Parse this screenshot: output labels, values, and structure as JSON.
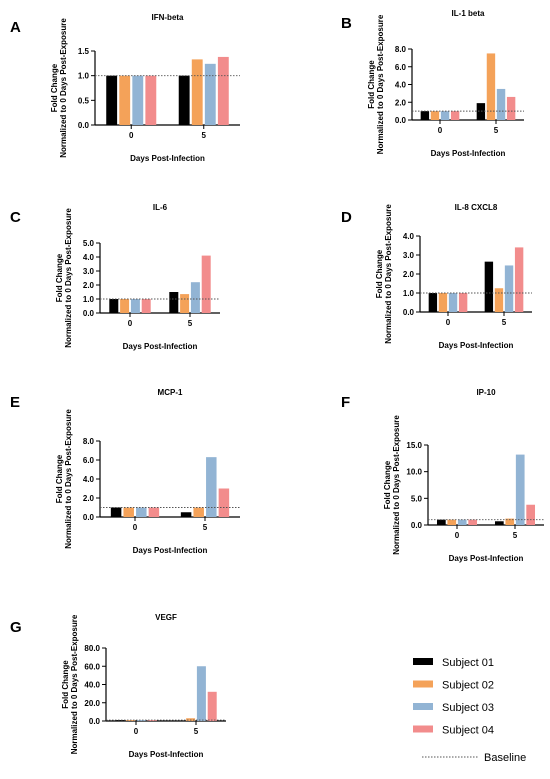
{
  "figure": {
    "colors": {
      "s1": "#000000",
      "s2": "#F4A259",
      "s3": "#92B4D4",
      "s4": "#F28C8C",
      "baseline": "#555555"
    },
    "legend": [
      {
        "label": "Subject 01",
        "color_key": "s1"
      },
      {
        "label": "Subject 02",
        "color_key": "s2"
      },
      {
        "label": "Subject 03",
        "color_key": "s3"
      },
      {
        "label": "Subject 04",
        "color_key": "s4"
      }
    ],
    "baseline_label": "Baseline"
  },
  "chart_data": [
    {
      "panel": "A",
      "title": "IFN-beta",
      "type": "bar",
      "ylabel_1": "Fold Change",
      "ylabel_2": "Normalized to 0 Days Post-Exposure",
      "xlabel": "Days Post-Infection",
      "categories": [
        "0",
        "5"
      ],
      "ylim": [
        0,
        1.5
      ],
      "yticks": [
        "0.0",
        "0.5",
        "1.0",
        "1.5"
      ],
      "baseline": 1.0,
      "series": [
        {
          "name": "Subject 01",
          "values": [
            1.0,
            1.0
          ]
        },
        {
          "name": "Subject 02",
          "values": [
            1.0,
            1.33
          ]
        },
        {
          "name": "Subject 03",
          "values": [
            1.0,
            1.24
          ]
        },
        {
          "name": "Subject 04",
          "values": [
            1.0,
            1.38
          ]
        }
      ]
    },
    {
      "panel": "B",
      "title": "IL-1 beta",
      "type": "bar",
      "ylabel_1": "Fold Change",
      "ylabel_2": "Normalized to 0 Days Post-Exposure",
      "xlabel": "Days Post-Infection",
      "categories": [
        "0",
        "5"
      ],
      "ylim": [
        0,
        8.0
      ],
      "yticks": [
        "0.0",
        "2.0",
        "4.0",
        "6.0",
        "8.0"
      ],
      "baseline": 1.0,
      "series": [
        {
          "name": "Subject 01",
          "values": [
            1.0,
            1.9
          ]
        },
        {
          "name": "Subject 02",
          "values": [
            1.0,
            7.5
          ]
        },
        {
          "name": "Subject 03",
          "values": [
            1.0,
            3.5
          ]
        },
        {
          "name": "Subject 04",
          "values": [
            1.0,
            2.6
          ]
        }
      ]
    },
    {
      "panel": "C",
      "title": "IL-6",
      "type": "bar",
      "ylabel_1": "Fold Change",
      "ylabel_2": "Normalized to 0 Days Post-Exposure",
      "xlabel": "Days Post-Infection",
      "categories": [
        "0",
        "5"
      ],
      "ylim": [
        0,
        5.0
      ],
      "yticks": [
        "0.0",
        "1.0",
        "2.0",
        "3.0",
        "4.0",
        "5.0"
      ],
      "baseline": 1.0,
      "series": [
        {
          "name": "Subject 01",
          "values": [
            1.0,
            1.5
          ]
        },
        {
          "name": "Subject 02",
          "values": [
            1.0,
            1.35
          ]
        },
        {
          "name": "Subject 03",
          "values": [
            1.0,
            2.2
          ]
        },
        {
          "name": "Subject 04",
          "values": [
            1.0,
            4.1
          ]
        }
      ]
    },
    {
      "panel": "D",
      "title": "IL-8 CXCL8",
      "type": "bar",
      "ylabel_1": "Fold Change",
      "ylabel_2": "Normalized to 0 Days Post-Exposure",
      "xlabel": "Days Post-Infection",
      "categories": [
        "0",
        "5"
      ],
      "ylim": [
        0,
        4.0
      ],
      "yticks": [
        "0.0",
        "1.0",
        "2.0",
        "3.0",
        "4.0"
      ],
      "baseline": 1.0,
      "series": [
        {
          "name": "Subject 01",
          "values": [
            1.0,
            2.65
          ]
        },
        {
          "name": "Subject 02",
          "values": [
            1.0,
            1.25
          ]
        },
        {
          "name": "Subject 03",
          "values": [
            1.0,
            2.45
          ]
        },
        {
          "name": "Subject 04",
          "values": [
            1.0,
            3.4
          ]
        }
      ]
    },
    {
      "panel": "E",
      "title": "MCP-1",
      "type": "bar",
      "ylabel_1": "Fold Change",
      "ylabel_2": "Normalized to 0 Days Post-Exposure",
      "xlabel": "Days Post-Infection",
      "categories": [
        "0",
        "5"
      ],
      "ylim": [
        0,
        8.0
      ],
      "yticks": [
        "0.0",
        "2.0",
        "4.0",
        "6.0",
        "8.0"
      ],
      "baseline": 1.0,
      "series": [
        {
          "name": "Subject 01",
          "values": [
            1.0,
            0.5
          ]
        },
        {
          "name": "Subject 02",
          "values": [
            1.0,
            1.0
          ]
        },
        {
          "name": "Subject 03",
          "values": [
            1.0,
            6.3
          ]
        },
        {
          "name": "Subject 04",
          "values": [
            1.0,
            3.0
          ]
        }
      ]
    },
    {
      "panel": "F",
      "title": "IP-10",
      "type": "bar",
      "ylabel_1": "Fold Change",
      "ylabel_2": "Normalized to 0 Days Post-Exposure",
      "xlabel": "Days Post-Infection",
      "categories": [
        "0",
        "5"
      ],
      "ylim": [
        0,
        15.0
      ],
      "yticks": [
        "0.0",
        "5.0",
        "10.0",
        "15.0"
      ],
      "baseline": 1.0,
      "series": [
        {
          "name": "Subject 01",
          "values": [
            1.0,
            0.7
          ]
        },
        {
          "name": "Subject 02",
          "values": [
            1.0,
            1.2
          ]
        },
        {
          "name": "Subject 03",
          "values": [
            1.0,
            13.2
          ]
        },
        {
          "name": "Subject 04",
          "values": [
            1.0,
            3.8
          ]
        }
      ]
    },
    {
      "panel": "G",
      "title": "VEGF",
      "type": "bar",
      "ylabel_1": "Fold Change",
      "ylabel_2": "Normalized to 0 Days Post-Exposure",
      "xlabel": "Days Post-Infection",
      "categories": [
        "0",
        "5"
      ],
      "ylim": [
        0,
        80.0
      ],
      "yticks": [
        "0.0",
        "20.0",
        "40.0",
        "60.0",
        "80.0"
      ],
      "baseline": 1.0,
      "series": [
        {
          "name": "Subject 01",
          "values": [
            1.0,
            0.5
          ]
        },
        {
          "name": "Subject 02",
          "values": [
            1.0,
            3.0
          ]
        },
        {
          "name": "Subject 03",
          "values": [
            1.0,
            60.0
          ]
        },
        {
          "name": "Subject 04",
          "values": [
            1.0,
            32.0
          ]
        }
      ]
    }
  ]
}
